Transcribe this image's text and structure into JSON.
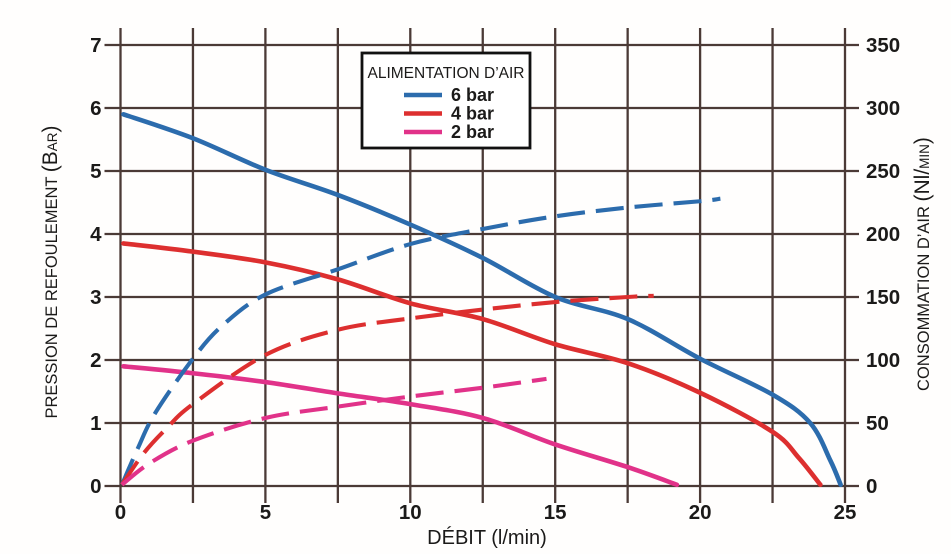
{
  "chart_data": {
    "type": "line",
    "title": "",
    "xlabel": "DÉBIT (l/min)",
    "ylabel_left": "PRESSION DE REFOULEMENT (Bar)",
    "ylabel_right": "CONSOMMATION D’AIR (Nl/min)",
    "ylabel_left_parts": [
      {
        "text": "PRESSION DE REFOULEMENT ",
        "size": "md"
      },
      {
        "text": "(B",
        "size": "lg"
      },
      {
        "text": "AR",
        "size": "sm"
      },
      {
        "text": ")",
        "size": "lg"
      }
    ],
    "ylabel_right_parts": [
      {
        "text": "CONSOMMATION D’AIR ",
        "size": "md"
      },
      {
        "text": "(Nl/",
        "size": "lg"
      },
      {
        "text": "MIN",
        "size": "sm"
      },
      {
        "text": ")",
        "size": "lg"
      }
    ],
    "xlim": [
      0,
      25
    ],
    "ylim_left": [
      0,
      7
    ],
    "ylim_right": [
      0,
      350
    ],
    "x_ticks": [
      0,
      5,
      10,
      15,
      20,
      25
    ],
    "x_grid_step": 2.5,
    "y_ticks_left": [
      0,
      1,
      2,
      3,
      4,
      5,
      6,
      7
    ],
    "y_ticks_right": [
      0,
      50,
      100,
      150,
      200,
      250,
      300,
      350
    ],
    "grid": true,
    "grid_color": "#4b3a36",
    "legend": {
      "title": "ALIMENTATION D’AIR",
      "position": "top-center",
      "entries": [
        {
          "label": "6 bar",
          "color": "#2c6cad"
        },
        {
          "label": "4 bar",
          "color": "#dd2f2f"
        },
        {
          "label": "2 bar",
          "color": "#e13289"
        }
      ]
    },
    "series": [
      {
        "name": "pression-refoulement-6-bar",
        "legend_label": "6 bar",
        "axis": "left",
        "unit": "bar",
        "style": "solid",
        "color": "#2c6cad",
        "points": [
          [
            0.1,
            5.9
          ],
          [
            2.5,
            5.52
          ],
          [
            5,
            5.02
          ],
          [
            7.5,
            4.62
          ],
          [
            10,
            4.15
          ],
          [
            12.5,
            3.62
          ],
          [
            15,
            3.0
          ],
          [
            17.5,
            2.65
          ],
          [
            20,
            2.02
          ],
          [
            22.5,
            1.45
          ],
          [
            23.8,
            1.0
          ],
          [
            24.5,
            0.4
          ],
          [
            24.85,
            0.02
          ]
        ]
      },
      {
        "name": "pression-refoulement-4-bar",
        "legend_label": "4 bar",
        "axis": "left",
        "unit": "bar",
        "style": "solid",
        "color": "#dd2f2f",
        "points": [
          [
            0.1,
            3.85
          ],
          [
            2.5,
            3.72
          ],
          [
            5,
            3.55
          ],
          [
            7.5,
            3.28
          ],
          [
            10,
            2.9
          ],
          [
            12.5,
            2.65
          ],
          [
            15,
            2.25
          ],
          [
            17.5,
            1.95
          ],
          [
            20,
            1.48
          ],
          [
            22.5,
            0.86
          ],
          [
            23.4,
            0.45
          ],
          [
            24.15,
            0.02
          ]
        ]
      },
      {
        "name": "pression-refoulement-2-bar",
        "legend_label": "2 bar",
        "axis": "left",
        "unit": "bar",
        "style": "solid",
        "color": "#e13289",
        "points": [
          [
            0.1,
            1.9
          ],
          [
            2.5,
            1.79
          ],
          [
            5,
            1.65
          ],
          [
            7.5,
            1.47
          ],
          [
            10,
            1.3
          ],
          [
            12.5,
            1.08
          ],
          [
            15,
            0.66
          ],
          [
            17.5,
            0.3
          ],
          [
            19.2,
            0.02
          ]
        ]
      },
      {
        "name": "consommation-air-6-bar",
        "legend_label": "6 bar",
        "axis": "right",
        "unit": "Nl/min",
        "style": "dashed",
        "color": "#2c6cad",
        "points": [
          [
            0.05,
            1
          ],
          [
            0.6,
            30
          ],
          [
            1.2,
            58
          ],
          [
            2.5,
            101
          ],
          [
            3.5,
            127
          ],
          [
            5,
            152
          ],
          [
            7.5,
            172
          ],
          [
            10,
            192
          ],
          [
            12.5,
            204
          ],
          [
            15,
            214
          ],
          [
            17.5,
            221
          ],
          [
            20,
            226
          ],
          [
            20.7,
            228
          ]
        ]
      },
      {
        "name": "consommation-air-4-bar",
        "legend_label": "4 bar",
        "axis": "right",
        "unit": "Nl/min",
        "style": "dashed",
        "color": "#dd2f2f",
        "points": [
          [
            0.05,
            1
          ],
          [
            0.8,
            26
          ],
          [
            1.6,
            46
          ],
          [
            2.5,
            65
          ],
          [
            5,
            104
          ],
          [
            7.5,
            124
          ],
          [
            10,
            133
          ],
          [
            12.5,
            140
          ],
          [
            15,
            146
          ],
          [
            17.5,
            150
          ],
          [
            18.4,
            151
          ]
        ]
      },
      {
        "name": "consommation-air-2-bar",
        "legend_label": "2 bar",
        "axis": "right",
        "unit": "Nl/min",
        "style": "dashed",
        "color": "#e13289",
        "points": [
          [
            0.05,
            1
          ],
          [
            1,
            18
          ],
          [
            2.5,
            36
          ],
          [
            5,
            54
          ],
          [
            7.5,
            63
          ],
          [
            10,
            71
          ],
          [
            12.5,
            78
          ],
          [
            14.7,
            85
          ]
        ]
      }
    ]
  }
}
